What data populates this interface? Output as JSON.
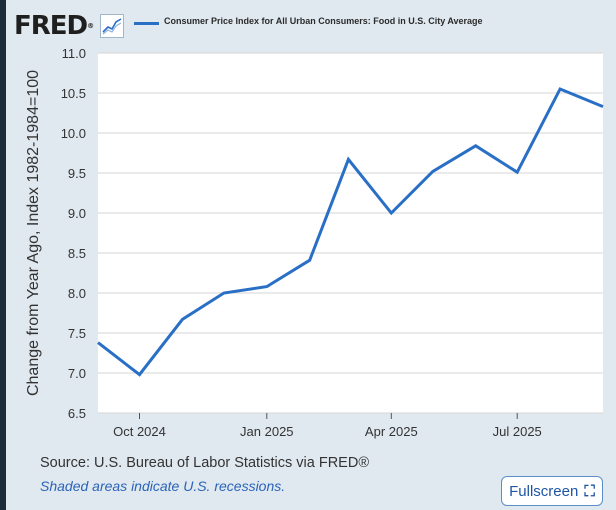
{
  "logo": {
    "text": "FRED",
    "reg": "®"
  },
  "colors": {
    "line": "#2a6fc6",
    "panel": "#e1e9f0",
    "plot_bg": "#ffffff",
    "grid": "#d6d6d6"
  },
  "footer": {
    "source": "Source: U.S. Bureau of Labor Statistics via FRED®",
    "note": "Shaded areas indicate U.S. recessions.",
    "fullscreen_label": "Fullscreen",
    "fullscreen_icon": "fullscreen-corners-icon"
  },
  "chart_data": {
    "type": "line",
    "ylabel": "Change from Year Ago, Index 1982-1984=100",
    "xlabel": "",
    "ylim": [
      6.5,
      11.0
    ],
    "yticks": [
      6.5,
      7.0,
      7.5,
      8.0,
      8.5,
      9.0,
      9.5,
      10.0,
      10.5,
      11.0
    ],
    "ytick_labels": [
      "6.5",
      "7.0",
      "7.5",
      "8.0",
      "8.5",
      "9.0",
      "9.5",
      "10.0",
      "10.5",
      "11.0"
    ],
    "xlim": [
      "2024-09-01",
      "2025-09-01"
    ],
    "xticks": [
      {
        "label": "Oct 2024",
        "x": "2024-10-01"
      },
      {
        "label": "Jan 2025",
        "x": "2025-01-01"
      },
      {
        "label": "Apr 2025",
        "x": "2025-04-01"
      },
      {
        "label": "Jul 2025",
        "x": "2025-07-01"
      }
    ],
    "grid": true,
    "legend_position": "top",
    "series": [
      {
        "name": "Consumer Price Index for All Urban Consumers: Food in U.S. City Average",
        "x": [
          "2024-09-01",
          "2024-10-01",
          "2024-11-01",
          "2024-12-01",
          "2025-01-01",
          "2025-02-01",
          "2025-03-01",
          "2025-04-01",
          "2025-05-01",
          "2025-06-01",
          "2025-07-01",
          "2025-08-01",
          "2025-09-01"
        ],
        "values": [
          7.38,
          6.98,
          7.67,
          8.0,
          8.08,
          8.41,
          9.67,
          9.0,
          9.52,
          9.84,
          9.51,
          10.55,
          10.33
        ]
      }
    ]
  }
}
